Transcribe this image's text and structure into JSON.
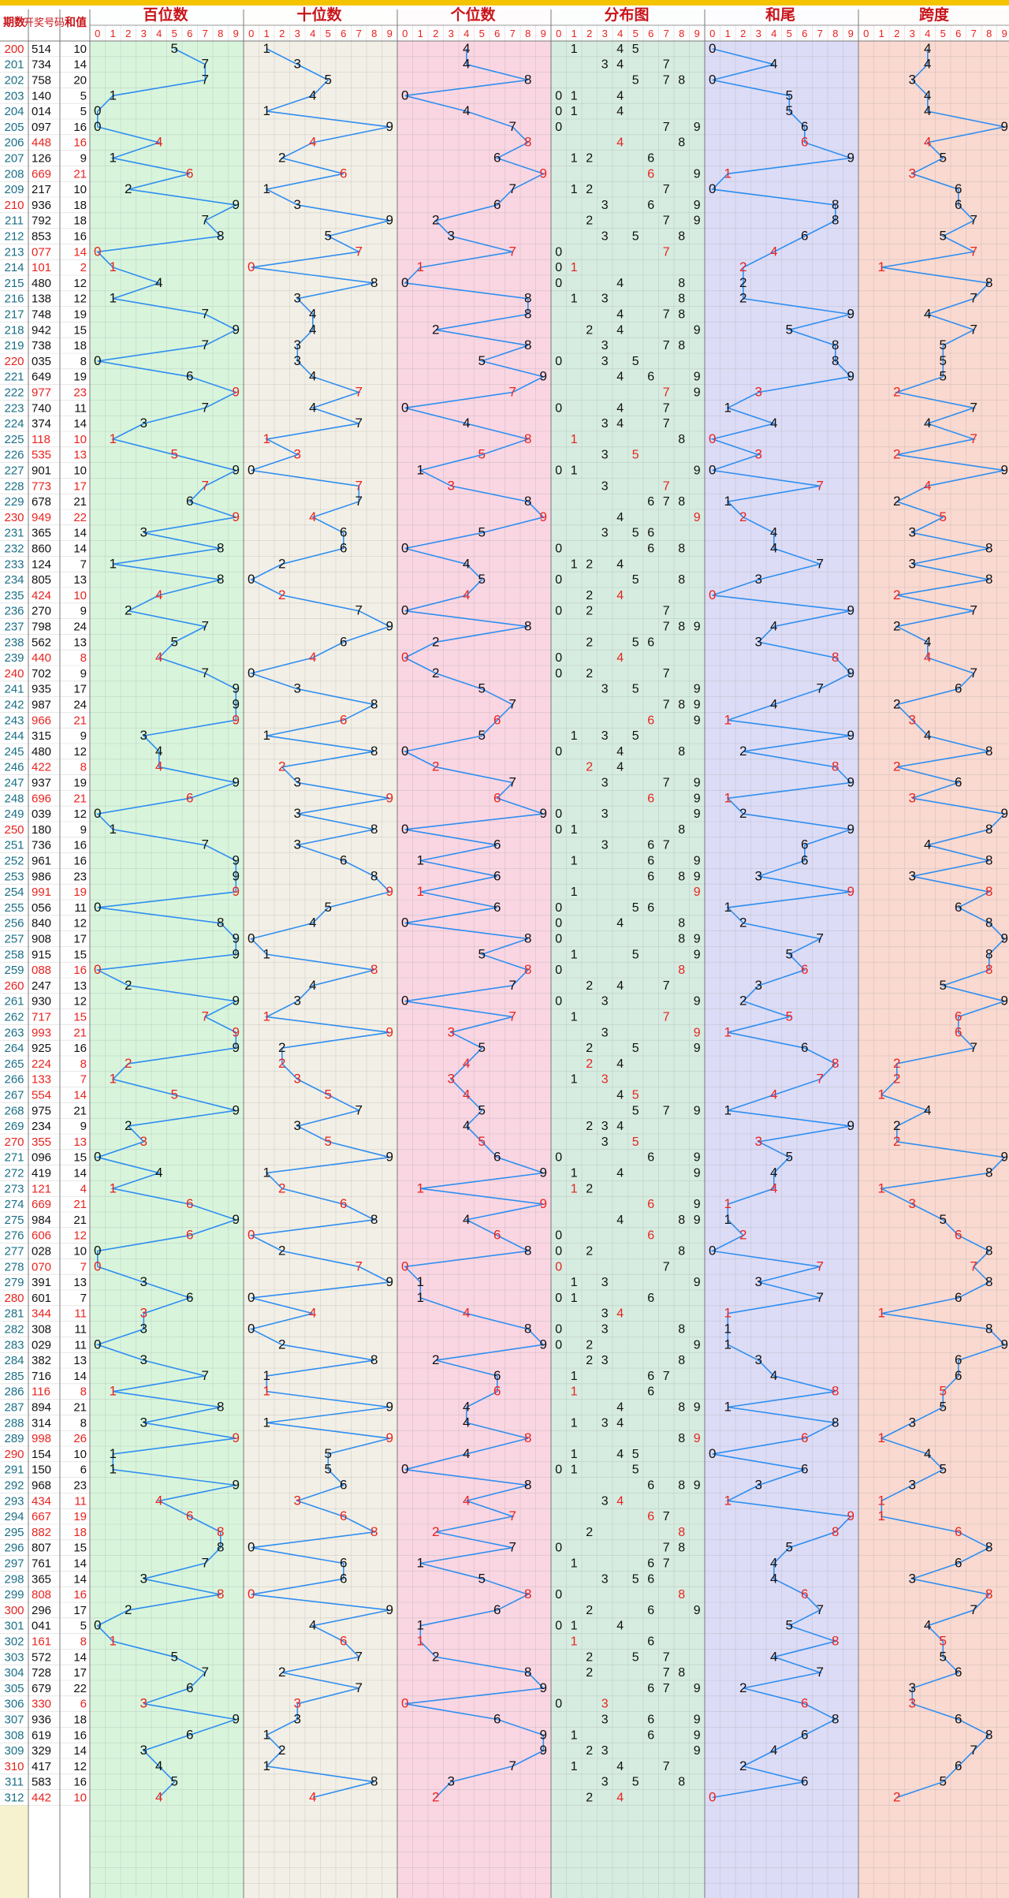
{
  "headers": {
    "period": "期数",
    "draw": "开奖号码",
    "sum": "和值",
    "hundreds": "百位数",
    "tens": "十位数",
    "units": "个位数",
    "distribution": "分布图",
    "sum_tail": "和尾",
    "span": "跨度"
  },
  "colors": {
    "accent_red": "#e8231f",
    "line_blue": "#2f8ef0",
    "top_bar": "#f5c400",
    "hundreds_bg": "#d8f5dc",
    "tens_bg": "#f2efe6",
    "units_bg": "#f9d6e2",
    "distribution_bg": "#d6ece0",
    "sum_tail_bg": "#dcdcf6",
    "span_bg": "#f9d9d0"
  },
  "chart_data": {
    "type": "table",
    "digit_columns": [
      "0",
      "1",
      "2",
      "3",
      "4",
      "5",
      "6",
      "7",
      "8",
      "9"
    ],
    "rows": [
      {
        "issue": "200",
        "draw": "514",
        "sum": "10"
      },
      {
        "issue": "201",
        "draw": "734",
        "sum": "14"
      },
      {
        "issue": "202",
        "draw": "758",
        "sum": "20"
      },
      {
        "issue": "203",
        "draw": "140",
        "sum": "5"
      },
      {
        "issue": "204",
        "draw": "014",
        "sum": "5"
      },
      {
        "issue": "205",
        "draw": "097",
        "sum": "16"
      },
      {
        "issue": "206",
        "draw": "448",
        "sum": "16"
      },
      {
        "issue": "207",
        "draw": "126",
        "sum": "9"
      },
      {
        "issue": "208",
        "draw": "669",
        "sum": "21"
      },
      {
        "issue": "209",
        "draw": "217",
        "sum": "10"
      },
      {
        "issue": "210",
        "draw": "936",
        "sum": "18"
      },
      {
        "issue": "211",
        "draw": "792",
        "sum": "18"
      },
      {
        "issue": "212",
        "draw": "853",
        "sum": "16"
      },
      {
        "issue": "213",
        "draw": "077",
        "sum": "14"
      },
      {
        "issue": "214",
        "draw": "101",
        "sum": "2"
      },
      {
        "issue": "215",
        "draw": "480",
        "sum": "12"
      },
      {
        "issue": "216",
        "draw": "138",
        "sum": "12"
      },
      {
        "issue": "217",
        "draw": "748",
        "sum": "19"
      },
      {
        "issue": "218",
        "draw": "942",
        "sum": "15"
      },
      {
        "issue": "219",
        "draw": "738",
        "sum": "18"
      },
      {
        "issue": "220",
        "draw": "035",
        "sum": "8"
      },
      {
        "issue": "221",
        "draw": "649",
        "sum": "19"
      },
      {
        "issue": "222",
        "draw": "977",
        "sum": "23"
      },
      {
        "issue": "223",
        "draw": "740",
        "sum": "11"
      },
      {
        "issue": "224",
        "draw": "374",
        "sum": "14"
      },
      {
        "issue": "225",
        "draw": "118",
        "sum": "10"
      },
      {
        "issue": "226",
        "draw": "535",
        "sum": "13"
      },
      {
        "issue": "227",
        "draw": "901",
        "sum": "10"
      },
      {
        "issue": "228",
        "draw": "773",
        "sum": "17"
      },
      {
        "issue": "229",
        "draw": "678",
        "sum": "21"
      },
      {
        "issue": "230",
        "draw": "949",
        "sum": "22"
      },
      {
        "issue": "231",
        "draw": "365",
        "sum": "14"
      },
      {
        "issue": "232",
        "draw": "860",
        "sum": "14"
      },
      {
        "issue": "233",
        "draw": "124",
        "sum": "7"
      },
      {
        "issue": "234",
        "draw": "805",
        "sum": "13"
      },
      {
        "issue": "235",
        "draw": "424",
        "sum": "10"
      },
      {
        "issue": "236",
        "draw": "270",
        "sum": "9"
      },
      {
        "issue": "237",
        "draw": "798",
        "sum": "24"
      },
      {
        "issue": "238",
        "draw": "562",
        "sum": "13"
      },
      {
        "issue": "239",
        "draw": "440",
        "sum": "8"
      },
      {
        "issue": "240",
        "draw": "702",
        "sum": "9"
      },
      {
        "issue": "241",
        "draw": "935",
        "sum": "17"
      },
      {
        "issue": "242",
        "draw": "987",
        "sum": "24"
      },
      {
        "issue": "243",
        "draw": "966",
        "sum": "21"
      },
      {
        "issue": "244",
        "draw": "315",
        "sum": "9"
      },
      {
        "issue": "245",
        "draw": "480",
        "sum": "12"
      },
      {
        "issue": "246",
        "draw": "422",
        "sum": "8"
      },
      {
        "issue": "247",
        "draw": "937",
        "sum": "19"
      },
      {
        "issue": "248",
        "draw": "696",
        "sum": "21"
      },
      {
        "issue": "249",
        "draw": "039",
        "sum": "12"
      },
      {
        "issue": "250",
        "draw": "180",
        "sum": "9"
      },
      {
        "issue": "251",
        "draw": "736",
        "sum": "16"
      },
      {
        "issue": "252",
        "draw": "961",
        "sum": "16"
      },
      {
        "issue": "253",
        "draw": "986",
        "sum": "23"
      },
      {
        "issue": "254",
        "draw": "991",
        "sum": "19"
      },
      {
        "issue": "255",
        "draw": "056",
        "sum": "11"
      },
      {
        "issue": "256",
        "draw": "840",
        "sum": "12"
      },
      {
        "issue": "257",
        "draw": "908",
        "sum": "17"
      },
      {
        "issue": "258",
        "draw": "915",
        "sum": "15"
      },
      {
        "issue": "259",
        "draw": "088",
        "sum": "16"
      },
      {
        "issue": "260",
        "draw": "247",
        "sum": "13"
      },
      {
        "issue": "261",
        "draw": "930",
        "sum": "12"
      },
      {
        "issue": "262",
        "draw": "717",
        "sum": "15"
      },
      {
        "issue": "263",
        "draw": "993",
        "sum": "21"
      },
      {
        "issue": "264",
        "draw": "925",
        "sum": "16"
      },
      {
        "issue": "265",
        "draw": "224",
        "sum": "8"
      },
      {
        "issue": "266",
        "draw": "133",
        "sum": "7"
      },
      {
        "issue": "267",
        "draw": "554",
        "sum": "14"
      },
      {
        "issue": "268",
        "draw": "975",
        "sum": "21"
      },
      {
        "issue": "269",
        "draw": "234",
        "sum": "9"
      },
      {
        "issue": "270",
        "draw": "355",
        "sum": "13"
      },
      {
        "issue": "271",
        "draw": "096",
        "sum": "15"
      },
      {
        "issue": "272",
        "draw": "419",
        "sum": "14"
      },
      {
        "issue": "273",
        "draw": "121",
        "sum": "4"
      },
      {
        "issue": "274",
        "draw": "669",
        "sum": "21"
      },
      {
        "issue": "275",
        "draw": "984",
        "sum": "21"
      },
      {
        "issue": "276",
        "draw": "606",
        "sum": "12"
      },
      {
        "issue": "277",
        "draw": "028",
        "sum": "10"
      },
      {
        "issue": "278",
        "draw": "070",
        "sum": "7"
      },
      {
        "issue": "279",
        "draw": "391",
        "sum": "13"
      },
      {
        "issue": "280",
        "draw": "601",
        "sum": "7"
      },
      {
        "issue": "281",
        "draw": "344",
        "sum": "11"
      },
      {
        "issue": "282",
        "draw": "308",
        "sum": "11"
      },
      {
        "issue": "283",
        "draw": "029",
        "sum": "11"
      },
      {
        "issue": "284",
        "draw": "382",
        "sum": "13"
      },
      {
        "issue": "285",
        "draw": "716",
        "sum": "14"
      },
      {
        "issue": "286",
        "draw": "116",
        "sum": "8"
      },
      {
        "issue": "287",
        "draw": "894",
        "sum": "21"
      },
      {
        "issue": "288",
        "draw": "314",
        "sum": "8"
      },
      {
        "issue": "289",
        "draw": "998",
        "sum": "26"
      },
      {
        "issue": "290",
        "draw": "154",
        "sum": "10"
      },
      {
        "issue": "291",
        "draw": "150",
        "sum": "6"
      },
      {
        "issue": "292",
        "draw": "968",
        "sum": "23"
      },
      {
        "issue": "293",
        "draw": "434",
        "sum": "11"
      },
      {
        "issue": "294",
        "draw": "667",
        "sum": "19"
      },
      {
        "issue": "295",
        "draw": "882",
        "sum": "18"
      },
      {
        "issue": "296",
        "draw": "807",
        "sum": "15"
      },
      {
        "issue": "297",
        "draw": "761",
        "sum": "14"
      },
      {
        "issue": "298",
        "draw": "365",
        "sum": "14"
      },
      {
        "issue": "299",
        "draw": "808",
        "sum": "16"
      },
      {
        "issue": "300",
        "draw": "296",
        "sum": "17"
      },
      {
        "issue": "301",
        "draw": "041",
        "sum": "5"
      },
      {
        "issue": "302",
        "draw": "161",
        "sum": "8"
      },
      {
        "issue": "303",
        "draw": "572",
        "sum": "14"
      },
      {
        "issue": "304",
        "draw": "728",
        "sum": "17"
      },
      {
        "issue": "305",
        "draw": "679",
        "sum": "22"
      },
      {
        "issue": "306",
        "draw": "330",
        "sum": "6"
      },
      {
        "issue": "307",
        "draw": "936",
        "sum": "18"
      },
      {
        "issue": "308",
        "draw": "619",
        "sum": "16"
      },
      {
        "issue": "309",
        "draw": "329",
        "sum": "14"
      },
      {
        "issue": "310",
        "draw": "417",
        "sum": "12"
      },
      {
        "issue": "311",
        "draw": "583",
        "sum": "16"
      },
      {
        "issue": "312",
        "draw": "442",
        "sum": "10"
      }
    ]
  }
}
